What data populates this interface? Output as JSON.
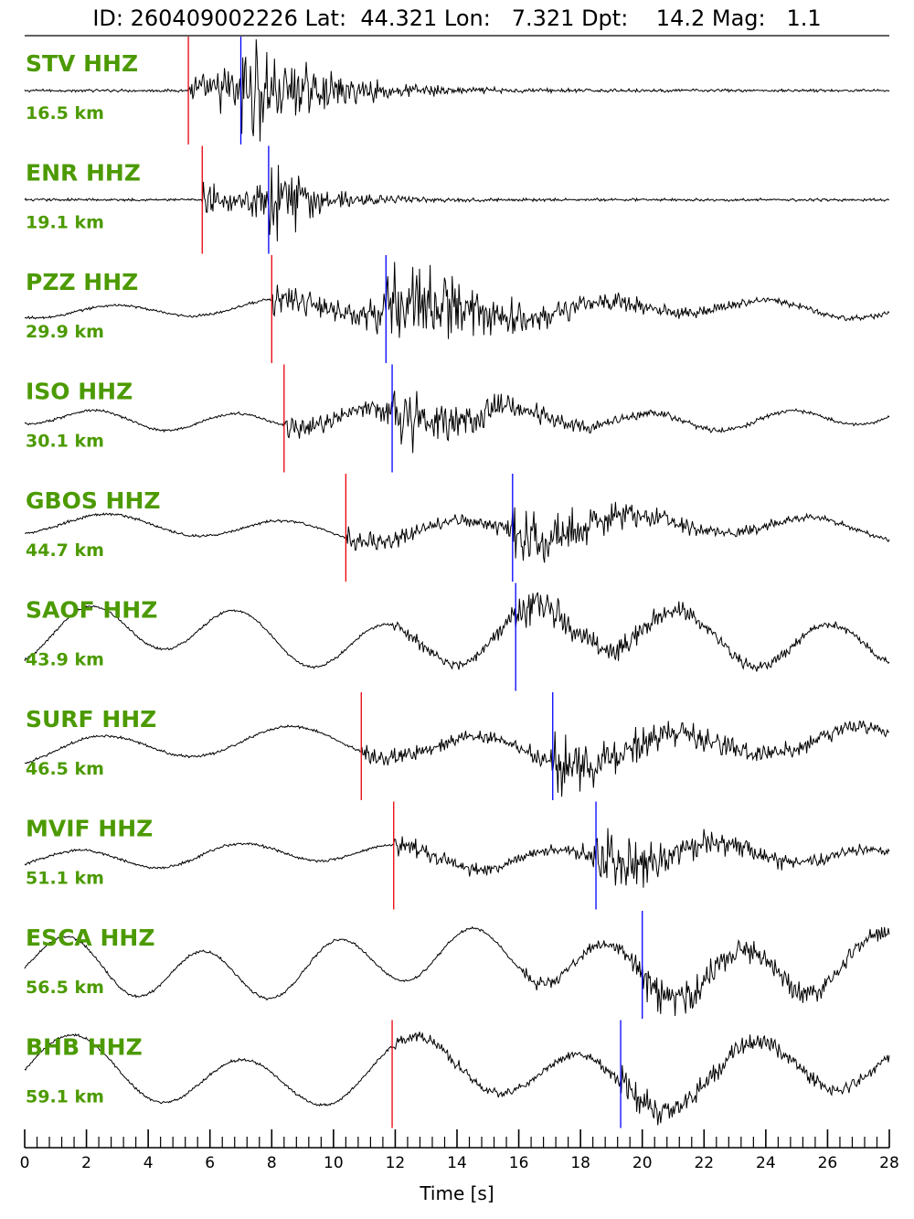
{
  "title": "ID: 260409002226 Lat:  44.321 Lon:   7.321 Dpt:    14.2 Mag:   1.1",
  "chart_data": {
    "type": "line",
    "xlabel": "Time [s]",
    "xlim": [
      0,
      28
    ],
    "x_ticks": [
      "0",
      "2",
      "4",
      "6",
      "8",
      "10",
      "12",
      "14",
      "16",
      "18",
      "20",
      "22",
      "24",
      "26",
      "28"
    ],
    "x_minor_step": 0.4,
    "colors": {
      "trace": "#000000",
      "p_pick": "#e8000b",
      "s_pick": "#0000ff",
      "label": "#4c9a00"
    },
    "stations": [
      {
        "name": "STV HHZ",
        "distance": "16.5 km",
        "p": 5.3,
        "s": 7.0,
        "amp": 0.75,
        "low": 0.0,
        "burst": 3.0,
        "decay": 2.2
      },
      {
        "name": "ENR HHZ",
        "distance": "19.1 km",
        "p": 5.75,
        "s": 7.9,
        "amp": 0.7,
        "low": 0.0,
        "burst": 3.5,
        "decay": 1.3
      },
      {
        "name": "PZZ HHZ",
        "distance": "29.9 km",
        "p": 8.0,
        "s": 11.7,
        "amp": 0.6,
        "low": 0.18,
        "burst": 3.0,
        "decay": 4.0
      },
      {
        "name": "ISO HHZ",
        "distance": "30.1 km",
        "p": 8.4,
        "s": 11.9,
        "amp": 0.5,
        "low": 0.22,
        "burst": 2.0,
        "decay": 3.0
      },
      {
        "name": "GBOS HHZ",
        "distance": "44.7 km",
        "p": 10.4,
        "s": 15.8,
        "amp": 0.45,
        "low": 0.25,
        "burst": 3.0,
        "decay": 3.5
      },
      {
        "name": "SAOF HHZ",
        "distance": "43.9 km",
        "p": null,
        "s": 15.9,
        "amp": 0.25,
        "low": 0.6,
        "burst": 1.8,
        "decay": 5.0
      },
      {
        "name": "SURF HHZ",
        "distance": "46.5 km",
        "p": 10.9,
        "s": 17.1,
        "amp": 0.35,
        "low": 0.35,
        "burst": 1.5,
        "decay": 6.0
      },
      {
        "name": "MVIF HHZ",
        "distance": "51.1 km",
        "p": 11.95,
        "s": 18.5,
        "amp": 0.4,
        "low": 0.25,
        "burst": 3.0,
        "decay": 4.0
      },
      {
        "name": "ESCA HHZ",
        "distance": "56.5 km",
        "p": null,
        "s": 20.0,
        "amp": 0.25,
        "low": 0.65,
        "burst": 1.5,
        "decay": 6.0
      },
      {
        "name": "BHB HHZ",
        "distance": "59.1 km",
        "p": 11.9,
        "s": 19.3,
        "amp": 0.22,
        "low": 0.7,
        "burst": 1.2,
        "decay": 6.0
      }
    ]
  }
}
